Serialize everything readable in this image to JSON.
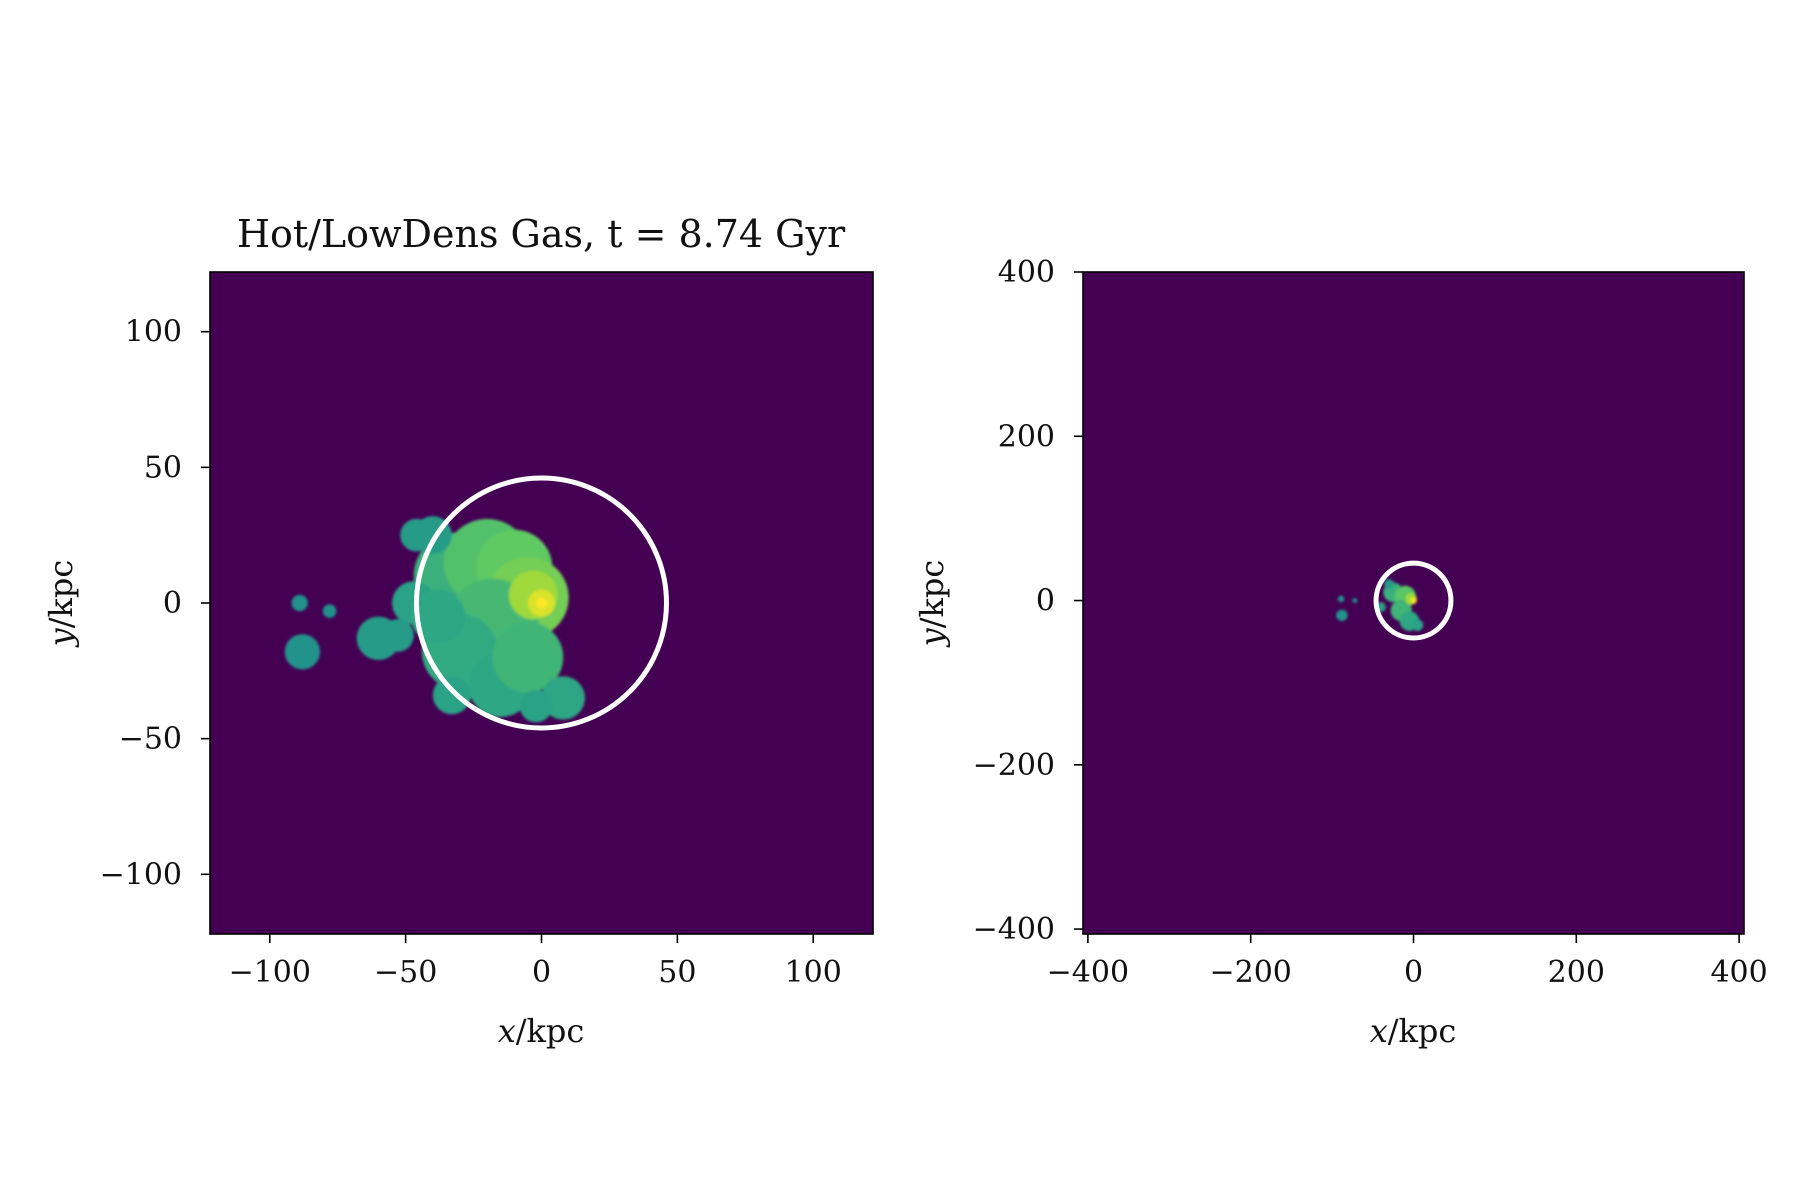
{
  "colors": {
    "background": "#440154",
    "cmap": [
      "#440154",
      "#21918c",
      "#2ea784",
      "#5ec962",
      "#b4de2c",
      "#fde725"
    ],
    "circle": "#ffffff"
  },
  "chart_data": [
    {
      "type": "heatmap",
      "title": "Hot/LowDens Gas, t = 8.74 Gyr",
      "xlabel": "x/kpc",
      "ylabel": "y/kpc",
      "xlabel_var": "x",
      "xlabel_unit": "/kpc",
      "ylabel_var": "y",
      "ylabel_unit": "/kpc",
      "xlim": [
        -122,
        122
      ],
      "ylim": [
        -122,
        122
      ],
      "xticks": [
        -100,
        -50,
        0,
        50,
        100
      ],
      "yticks": [
        -100,
        -50,
        0,
        50,
        100
      ],
      "xtick_labels": [
        "−100",
        "−50",
        "0",
        "50",
        "100"
      ],
      "ytick_labels": [
        "−100",
        "−50",
        "0",
        "50",
        "100"
      ],
      "circle": {
        "cx": 0,
        "cy": 0,
        "r": 46
      },
      "blobs": [
        {
          "x": -31,
          "y": 10,
          "r": 16,
          "level": 0.45
        },
        {
          "x": -20,
          "y": 15,
          "r": 16,
          "level": 0.55
        },
        {
          "x": -10,
          "y": 13,
          "r": 14,
          "level": 0.6
        },
        {
          "x": -5,
          "y": 2,
          "r": 15,
          "level": 0.65
        },
        {
          "x": -18,
          "y": -8,
          "r": 17,
          "level": 0.5
        },
        {
          "x": -30,
          "y": -18,
          "r": 14,
          "level": 0.42
        },
        {
          "x": -15,
          "y": -30,
          "r": 12,
          "level": 0.4
        },
        {
          "x": -5,
          "y": -20,
          "r": 13,
          "level": 0.48
        },
        {
          "x": -40,
          "y": 25,
          "r": 7,
          "level": 0.3
        },
        {
          "x": -46,
          "y": 25,
          "r": 6,
          "level": 0.3
        },
        {
          "x": -47,
          "y": 0,
          "r": 8,
          "level": 0.35
        },
        {
          "x": -38,
          "y": -5,
          "r": 10,
          "level": 0.4
        },
        {
          "x": -60,
          "y": -13,
          "r": 8,
          "level": 0.3
        },
        {
          "x": -53,
          "y": -12,
          "r": 6,
          "level": 0.3
        },
        {
          "x": -33,
          "y": -34,
          "r": 7,
          "level": 0.35
        },
        {
          "x": 8,
          "y": -35,
          "r": 8,
          "level": 0.38
        },
        {
          "x": -2,
          "y": -38,
          "r": 6,
          "level": 0.35
        },
        {
          "x": -88,
          "y": -18,
          "r": 6.5,
          "level": 0.22
        },
        {
          "x": -89,
          "y": 0,
          "r": 3,
          "level": 0.2
        },
        {
          "x": -78,
          "y": -3,
          "r": 2.5,
          "level": 0.2
        },
        {
          "x": -3,
          "y": 3,
          "r": 9,
          "level": 0.75
        },
        {
          "x": 0,
          "y": 0,
          "r": 5,
          "level": 0.9
        },
        {
          "x": 0,
          "y": 0,
          "r": 2,
          "level": 1.0
        }
      ]
    },
    {
      "type": "heatmap",
      "title": "",
      "xlabel": "x/kpc",
      "ylabel": "y/kpc",
      "xlabel_var": "x",
      "xlabel_unit": "/kpc",
      "ylabel_var": "y",
      "ylabel_unit": "/kpc",
      "xlim": [
        -406,
        406
      ],
      "ylim": [
        -406,
        400
      ],
      "xticks": [
        -400,
        -200,
        0,
        200,
        400
      ],
      "yticks": [
        -400,
        -200,
        0,
        200,
        400
      ],
      "xtick_labels": [
        "−400",
        "−200",
        "0",
        "200",
        "400"
      ],
      "ytick_labels": [
        "−400",
        "−200",
        "0",
        "200",
        "400"
      ],
      "circle": {
        "cx": 0,
        "cy": 0,
        "r": 46
      },
      "blobs": [
        {
          "x": -25,
          "y": 10,
          "r": 12,
          "level": 0.45
        },
        {
          "x": -10,
          "y": 5,
          "r": 13,
          "level": 0.58
        },
        {
          "x": -15,
          "y": -12,
          "r": 13,
          "level": 0.48
        },
        {
          "x": -5,
          "y": -25,
          "r": 12,
          "level": 0.4
        },
        {
          "x": -30,
          "y": 20,
          "r": 6,
          "level": 0.3
        },
        {
          "x": -40,
          "y": -8,
          "r": 6,
          "level": 0.32
        },
        {
          "x": 5,
          "y": -30,
          "r": 7,
          "level": 0.36
        },
        {
          "x": -88,
          "y": -18,
          "r": 7,
          "level": 0.22
        },
        {
          "x": -89,
          "y": 2,
          "r": 4,
          "level": 0.2
        },
        {
          "x": -72,
          "y": 0,
          "r": 3,
          "level": 0.2
        },
        {
          "x": -3,
          "y": 2,
          "r": 7,
          "level": 0.75
        },
        {
          "x": 0,
          "y": 0,
          "r": 4,
          "level": 0.95
        }
      ]
    }
  ]
}
